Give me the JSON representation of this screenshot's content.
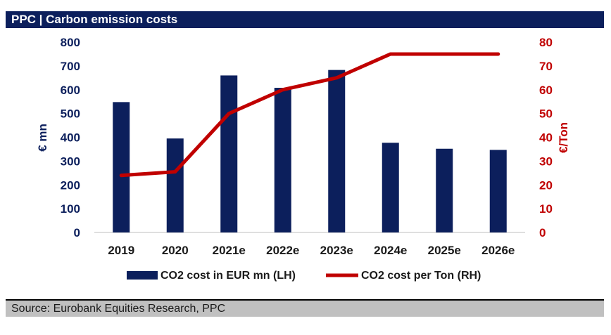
{
  "header": {
    "title": "PPC | Carbon emission costs"
  },
  "footer": {
    "source": "Source: Eurobank Equities Research, PPC"
  },
  "colors": {
    "bar": "#0c1f5c",
    "line": "#c00000",
    "header_bg": "#0c1f5c",
    "source_bg": "#c0c0c0"
  },
  "chart_data": {
    "type": "bar",
    "title": "PPC | Carbon emission costs",
    "categories": [
      "2019",
      "2020",
      "2021e",
      "2022e",
      "2023e",
      "2024e",
      "2025e",
      "2026e"
    ],
    "series": [
      {
        "name": "CO2 cost in EUR mn (LH)",
        "type": "bar",
        "axis": "left",
        "values": [
          548,
          395,
          660,
          608,
          683,
          377,
          352,
          347
        ]
      },
      {
        "name": "CO2 cost per Ton (RH)",
        "type": "line",
        "axis": "right",
        "values": [
          24,
          25.5,
          50,
          60,
          65,
          75,
          75,
          75
        ]
      }
    ],
    "y_left": {
      "label": "€ mn",
      "ylim": [
        0,
        800
      ],
      "ticks": [
        "0",
        "100",
        "200",
        "300",
        "400",
        "500",
        "600",
        "700",
        "800"
      ]
    },
    "y_right": {
      "label": "€/Ton",
      "ylim": [
        0,
        80
      ],
      "ticks": [
        "0",
        "10",
        "20",
        "30",
        "40",
        "50",
        "60",
        "70",
        "80"
      ]
    },
    "grid": false,
    "legend": "bottom"
  }
}
